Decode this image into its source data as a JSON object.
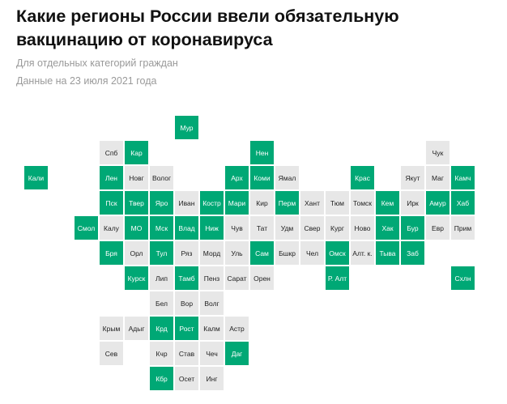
{
  "header": {
    "title": "Какие регионы России ввели обязательную вакцинацию от коронавируса",
    "subtitle": "Для отдельных категорий граждан",
    "date_note": "Данные на 23 июля 2021 года"
  },
  "colors": {
    "mandatory": "#00a875",
    "not_mandatory": "#e7e7e7"
  },
  "regions": [
    {
      "label": "Мур",
      "mandatory": true
    },
    {
      "label": "Спб",
      "mandatory": false
    },
    {
      "label": "Кар",
      "mandatory": true
    },
    {
      "label": "Нен",
      "mandatory": true
    },
    {
      "label": "Чук",
      "mandatory": false
    },
    {
      "label": "Кали",
      "mandatory": true
    },
    {
      "label": "Лен",
      "mandatory": true
    },
    {
      "label": "Новг",
      "mandatory": false
    },
    {
      "label": "Волог",
      "mandatory": false
    },
    {
      "label": "Арх",
      "mandatory": true
    },
    {
      "label": "Коми",
      "mandatory": true
    },
    {
      "label": "Ямал",
      "mandatory": false
    },
    {
      "label": "Крас",
      "mandatory": true
    },
    {
      "label": "Якут",
      "mandatory": false
    },
    {
      "label": "Маг",
      "mandatory": false
    },
    {
      "label": "Камч",
      "mandatory": true
    },
    {
      "label": "Пск",
      "mandatory": true
    },
    {
      "label": "Твер",
      "mandatory": true
    },
    {
      "label": "Яро",
      "mandatory": true
    },
    {
      "label": "Иван",
      "mandatory": false
    },
    {
      "label": "Костр",
      "mandatory": true
    },
    {
      "label": "Мари",
      "mandatory": true
    },
    {
      "label": "Кир",
      "mandatory": false
    },
    {
      "label": "Перм",
      "mandatory": true
    },
    {
      "label": "Хант",
      "mandatory": false
    },
    {
      "label": "Тюм",
      "mandatory": false
    },
    {
      "label": "Томск",
      "mandatory": false
    },
    {
      "label": "Кем",
      "mandatory": true
    },
    {
      "label": "Ирк",
      "mandatory": false
    },
    {
      "label": "Амур",
      "mandatory": true
    },
    {
      "label": "Хаб",
      "mandatory": true
    },
    {
      "label": "Смол",
      "mandatory": true
    },
    {
      "label": "Калу",
      "mandatory": false
    },
    {
      "label": "МО",
      "mandatory": true
    },
    {
      "label": "Мск",
      "mandatory": true
    },
    {
      "label": "Влад",
      "mandatory": true
    },
    {
      "label": "Ниж",
      "mandatory": true
    },
    {
      "label": "Чув",
      "mandatory": false
    },
    {
      "label": "Тат",
      "mandatory": false
    },
    {
      "label": "Удм",
      "mandatory": false
    },
    {
      "label": "Свер",
      "mandatory": false
    },
    {
      "label": "Кург",
      "mandatory": false
    },
    {
      "label": "Ново",
      "mandatory": false
    },
    {
      "label": "Хак",
      "mandatory": true
    },
    {
      "label": "Бур",
      "mandatory": true
    },
    {
      "label": "Евр",
      "mandatory": false
    },
    {
      "label": "Прим",
      "mandatory": false
    },
    {
      "label": "Бря",
      "mandatory": true
    },
    {
      "label": "Орл",
      "mandatory": false
    },
    {
      "label": "Тул",
      "mandatory": true
    },
    {
      "label": "Ряз",
      "mandatory": false
    },
    {
      "label": "Морд",
      "mandatory": false
    },
    {
      "label": "Уль",
      "mandatory": false
    },
    {
      "label": "Сам",
      "mandatory": true
    },
    {
      "label": "Бшкр",
      "mandatory": false
    },
    {
      "label": "Чел",
      "mandatory": false
    },
    {
      "label": "Омск",
      "mandatory": true
    },
    {
      "label": "Алт. к.",
      "mandatory": false
    },
    {
      "label": "Тыва",
      "mandatory": true
    },
    {
      "label": "Заб",
      "mandatory": true
    },
    {
      "label": "Курск",
      "mandatory": true
    },
    {
      "label": "Лип",
      "mandatory": false
    },
    {
      "label": "Тамб",
      "mandatory": true
    },
    {
      "label": "Пенз",
      "mandatory": false
    },
    {
      "label": "Сарат",
      "mandatory": false
    },
    {
      "label": "Орен",
      "mandatory": false
    },
    {
      "label": "Р. Алт",
      "mandatory": true
    },
    {
      "label": "Схлн",
      "mandatory": true
    },
    {
      "label": "Бел",
      "mandatory": false
    },
    {
      "label": "Вор",
      "mandatory": false
    },
    {
      "label": "Волг",
      "mandatory": false
    },
    {
      "label": "Крым",
      "mandatory": false
    },
    {
      "label": "Адыг",
      "mandatory": false
    },
    {
      "label": "Крд",
      "mandatory": true
    },
    {
      "label": "Рост",
      "mandatory": true
    },
    {
      "label": "Калм",
      "mandatory": false
    },
    {
      "label": "Астр",
      "mandatory": false
    },
    {
      "label": "Сев",
      "mandatory": false
    },
    {
      "label": "Кчр",
      "mandatory": false
    },
    {
      "label": "Став",
      "mandatory": false
    },
    {
      "label": "Чеч",
      "mandatory": false
    },
    {
      "label": "Даг",
      "mandatory": true
    },
    {
      "label": "Кбр",
      "mandatory": true
    },
    {
      "label": "Осет",
      "mandatory": false
    },
    {
      "label": "Инг",
      "mandatory": false
    }
  ]
}
